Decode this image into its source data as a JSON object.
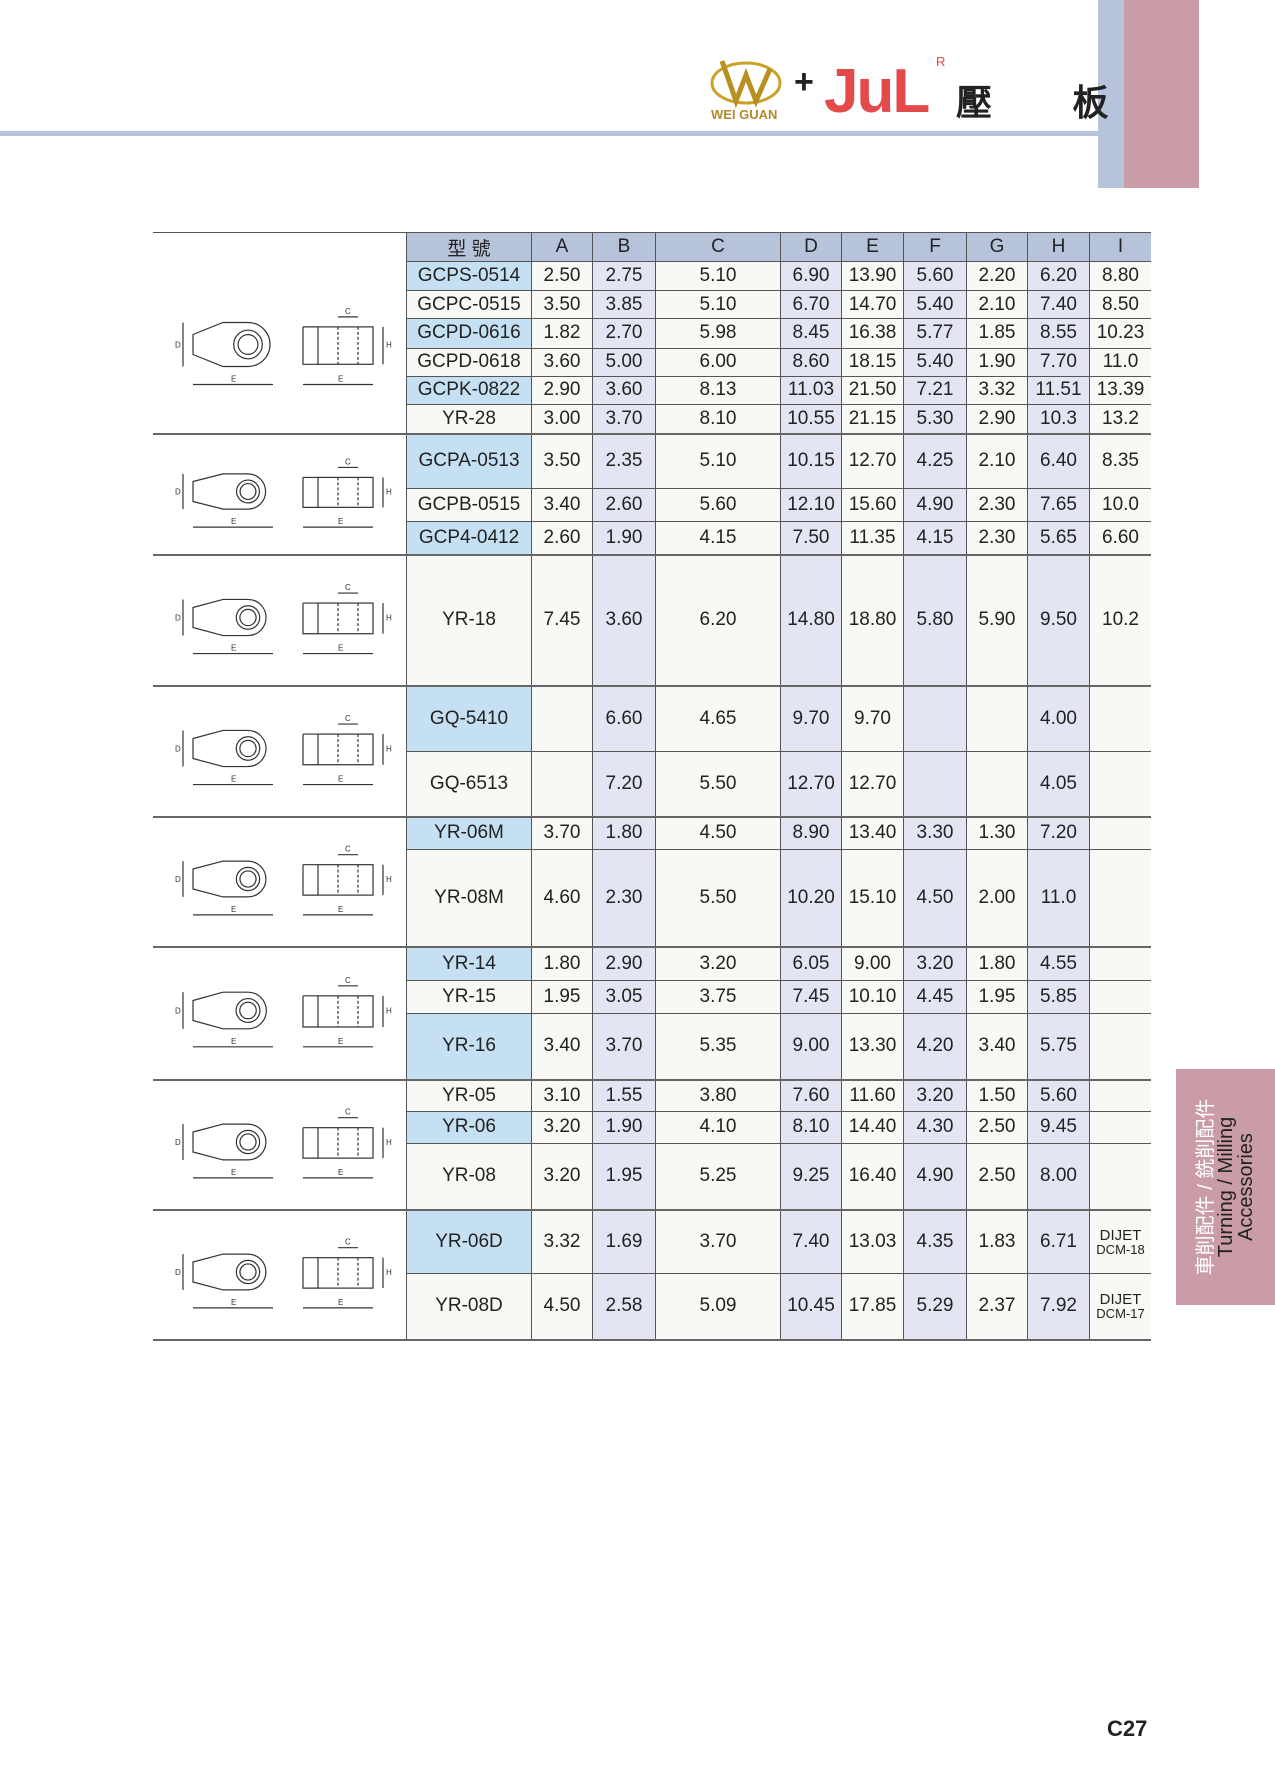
{
  "header": {
    "brand_left": "WEI GUAN",
    "plus": "+",
    "brand_right": "JuL",
    "registered": "R",
    "title": "壓 板"
  },
  "colors": {
    "header_bg": "#b6c3da",
    "accent_pink": "#c99ca8",
    "model_highlight": "#c6e0f3",
    "column_shade": "#e3e5f2",
    "brand_red": "#e34b4b"
  },
  "side_tab": {
    "zh": "車削配件 / 銑削配件",
    "en1": "Turning / Milling",
    "en2": "Accessories"
  },
  "page_number": "C27",
  "table": {
    "columns": [
      "型 號",
      "A",
      "B",
      "C",
      "D",
      "E",
      "F",
      "G",
      "H",
      "I"
    ],
    "groups": [
      {
        "drawing": "clamp-type-1",
        "rows": [
          {
            "model": "GCPS-0514",
            "hl": true,
            "v": [
              "2.50",
              "2.75",
              "5.10",
              "6.90",
              "13.90",
              "5.60",
              "2.20",
              "6.20",
              "8.80"
            ]
          },
          {
            "model": "GCPC-0515",
            "hl": false,
            "v": [
              "3.50",
              "3.85",
              "5.10",
              "6.70",
              "14.70",
              "5.40",
              "2.10",
              "7.40",
              "8.50"
            ]
          },
          {
            "model": "GCPD-0616",
            "hl": true,
            "v": [
              "1.82",
              "2.70",
              "5.98",
              "8.45",
              "16.38",
              "5.77",
              "1.85",
              "8.55",
              "10.23"
            ]
          },
          {
            "model": "GCPD-0618",
            "hl": false,
            "v": [
              "3.60",
              "5.00",
              "6.00",
              "8.60",
              "18.15",
              "5.40",
              "1.90",
              "7.70",
              "11.0"
            ]
          },
          {
            "model": "GCPK-0822",
            "hl": true,
            "v": [
              "2.90",
              "3.60",
              "8.13",
              "11.03",
              "21.50",
              "7.21",
              "3.32",
              "11.51",
              "13.39"
            ]
          },
          {
            "model": "YR-28",
            "hl": false,
            "v": [
              "3.00",
              "3.70",
              "8.10",
              "10.55",
              "21.15",
              "5.30",
              "2.90",
              "10.3",
              "13.2"
            ]
          }
        ]
      },
      {
        "drawing": "clamp-type-2",
        "rows": [
          {
            "model": "GCPA-0513",
            "hl": true,
            "v": [
              "3.50",
              "2.35",
              "5.10",
              "10.15",
              "12.70",
              "4.25",
              "2.10",
              "6.40",
              "8.35"
            ]
          },
          {
            "model": "GCPB-0515",
            "hl": false,
            "v": [
              "3.40",
              "2.60",
              "5.60",
              "12.10",
              "15.60",
              "4.90",
              "2.30",
              "7.65",
              "10.0"
            ]
          },
          {
            "model": "GCP4-0412",
            "hl": true,
            "v": [
              "2.60",
              "1.90",
              "4.15",
              "7.50",
              "11.35",
              "4.15",
              "2.30",
              "5.65",
              "6.60"
            ]
          }
        ]
      },
      {
        "drawing": "clamp-type-3",
        "rows": [
          {
            "model": "YR-18",
            "hl": false,
            "v": [
              "7.45",
              "3.60",
              "6.20",
              "14.80",
              "18.80",
              "5.80",
              "5.90",
              "9.50",
              "10.2"
            ]
          }
        ]
      },
      {
        "drawing": "clamp-type-4",
        "rows": [
          {
            "model": "GQ-5410",
            "hl": true,
            "v": [
              "",
              "6.60",
              "4.65",
              "9.70",
              "9.70",
              "",
              "",
              "4.00",
              ""
            ]
          },
          {
            "model": "GQ-6513",
            "hl": false,
            "v": [
              "",
              "7.20",
              "5.50",
              "12.70",
              "12.70",
              "",
              "",
              "4.05",
              ""
            ]
          }
        ]
      },
      {
        "drawing": "clamp-type-5",
        "rows": [
          {
            "model": "YR-06M",
            "hl": true,
            "v": [
              "3.70",
              "1.80",
              "4.50",
              "8.90",
              "13.40",
              "3.30",
              "1.30",
              "7.20",
              ""
            ]
          },
          {
            "model": "YR-08M",
            "hl": false,
            "v": [
              "4.60",
              "2.30",
              "5.50",
              "10.20",
              "15.10",
              "4.50",
              "2.00",
              "11.0",
              ""
            ]
          }
        ]
      },
      {
        "drawing": "clamp-type-6",
        "rows": [
          {
            "model": "YR-14",
            "hl": true,
            "v": [
              "1.80",
              "2.90",
              "3.20",
              "6.05",
              "9.00",
              "3.20",
              "1.80",
              "4.55",
              ""
            ]
          },
          {
            "model": "YR-15",
            "hl": false,
            "v": [
              "1.95",
              "3.05",
              "3.75",
              "7.45",
              "10.10",
              "4.45",
              "1.95",
              "5.85",
              ""
            ]
          },
          {
            "model": "YR-16",
            "hl": true,
            "v": [
              "3.40",
              "3.70",
              "5.35",
              "9.00",
              "13.30",
              "4.20",
              "3.40",
              "5.75",
              ""
            ]
          }
        ]
      },
      {
        "drawing": "clamp-type-7",
        "rows": [
          {
            "model": "YR-05",
            "hl": false,
            "v": [
              "3.10",
              "1.55",
              "3.80",
              "7.60",
              "11.60",
              "3.20",
              "1.50",
              "5.60",
              ""
            ]
          },
          {
            "model": "YR-06",
            "hl": true,
            "v": [
              "3.20",
              "1.90",
              "4.10",
              "8.10",
              "14.40",
              "4.30",
              "2.50",
              "9.45",
              ""
            ]
          },
          {
            "model": "YR-08",
            "hl": false,
            "v": [
              "3.20",
              "1.95",
              "5.25",
              "9.25",
              "16.40",
              "4.90",
              "2.50",
              "8.00",
              ""
            ]
          }
        ]
      },
      {
        "drawing": "clamp-type-8",
        "rows": [
          {
            "model": "YR-06D",
            "hl": true,
            "v": [
              "3.32",
              "1.69",
              "3.70",
              "7.40",
              "13.03",
              "4.35",
              "1.83",
              "6.71",
              ""
            ],
            "note": [
              "DIJET",
              "DCM-18"
            ]
          },
          {
            "model": "YR-08D",
            "hl": false,
            "v": [
              "4.50",
              "2.58",
              "5.09",
              "10.45",
              "17.85",
              "5.29",
              "2.37",
              "7.92",
              ""
            ],
            "note": [
              "DIJET",
              "DCM-17"
            ]
          }
        ]
      }
    ]
  }
}
